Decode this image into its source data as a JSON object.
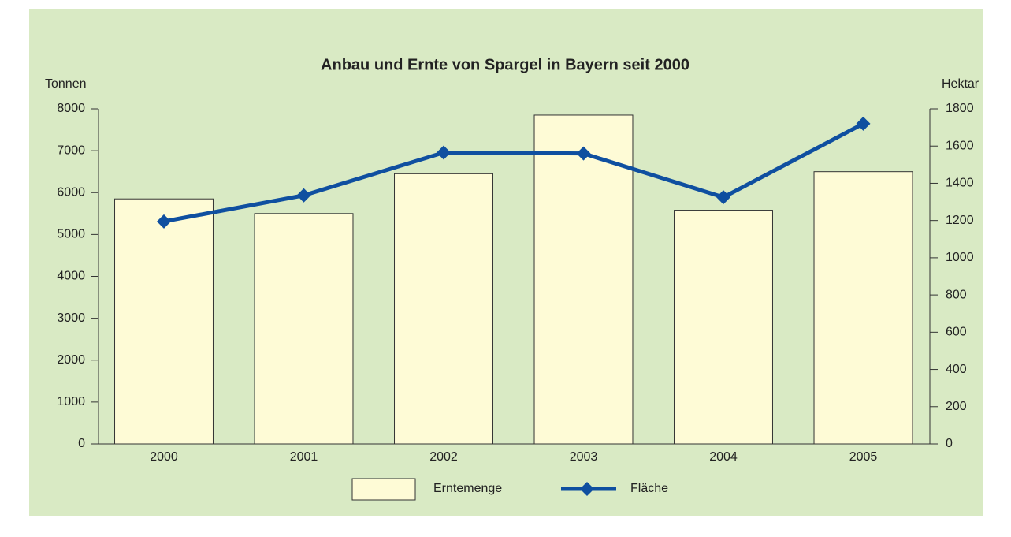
{
  "chart_data": {
    "type": "bar",
    "title": "Anbau und Ernte von Spargel in Bayern seit 2000",
    "y_label": "Tonnen",
    "y2_label": "Hektar",
    "categories": [
      "2000",
      "2001",
      "2002",
      "2003",
      "2004",
      "2005"
    ],
    "series": [
      {
        "name": "Erntemenge",
        "type": "bar",
        "color": "#fefbd6",
        "values": [
          5850,
          5500,
          6450,
          7850,
          5580,
          6500
        ]
      },
      {
        "name": "Fläche",
        "type": "line",
        "axis": "y2",
        "color": "#0f4fa0",
        "values": [
          1195,
          1335,
          1565,
          1560,
          1325,
          1720
        ]
      }
    ],
    "ylim": [
      0,
      8000
    ],
    "yticks": [
      0,
      1000,
      2000,
      3000,
      4000,
      5000,
      6000,
      7000,
      8000
    ],
    "y2lim": [
      0,
      1800
    ],
    "y2ticks": [
      0,
      200,
      400,
      600,
      800,
      1000,
      1200,
      1400,
      1600,
      1800
    ],
    "legend": "bottom",
    "grid": false
  }
}
